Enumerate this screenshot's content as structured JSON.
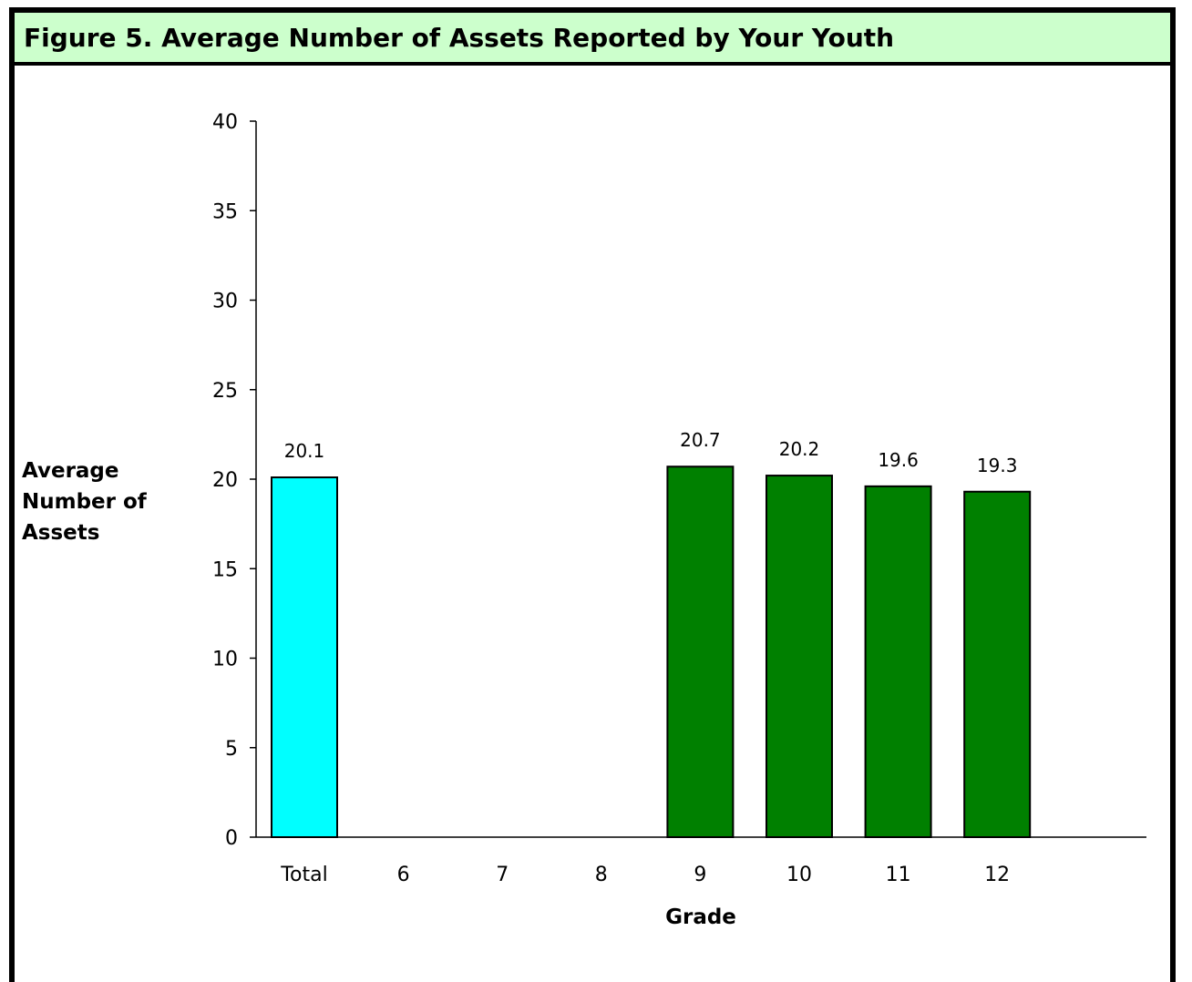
{
  "chart_data": {
    "type": "bar",
    "title": "Figure 5.  Average Number of Assets Reported by Your Youth",
    "ylabel": "Average Number of Assets",
    "xlabel": "Grade",
    "categories": [
      "Total",
      "6",
      "7",
      "8",
      "9",
      "10",
      "11",
      "12"
    ],
    "values": [
      20.1,
      null,
      null,
      null,
      20.7,
      20.2,
      19.6,
      19.3
    ],
    "data_labels": [
      "20.1",
      "",
      "",
      "",
      "20.7",
      "20.2",
      "19.6",
      "19.3"
    ],
    "ylim": [
      0,
      40
    ],
    "yticks": [
      "0",
      "5",
      "10",
      "15",
      "20",
      "25",
      "30",
      "35",
      "40"
    ],
    "grid": false,
    "legend": "none",
    "colors": {
      "total_bar": "#00ffff",
      "grade_bar": "#008000",
      "title_background": "#ccffcc"
    }
  }
}
